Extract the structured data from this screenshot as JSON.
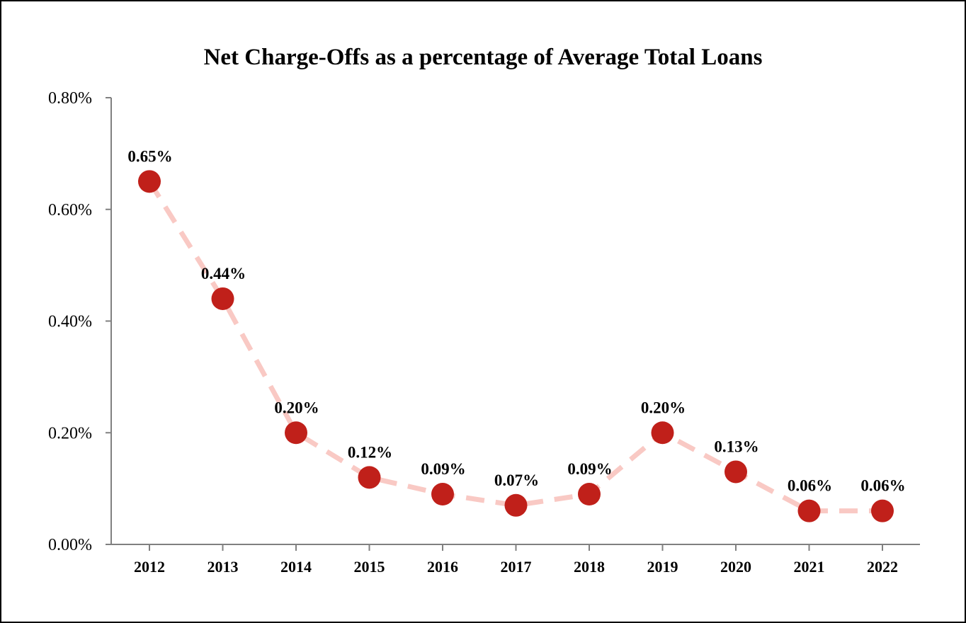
{
  "chart_data": {
    "type": "line",
    "title": "Net Charge-Offs as a percentage of Average Total Loans",
    "xlabel": "",
    "ylabel": "",
    "categories": [
      "2012",
      "2013",
      "2014",
      "2015",
      "2016",
      "2017",
      "2018",
      "2019",
      "2020",
      "2021",
      "2022"
    ],
    "values": [
      0.65,
      0.44,
      0.2,
      0.12,
      0.09,
      0.07,
      0.09,
      0.2,
      0.13,
      0.06,
      0.06
    ],
    "data_labels": [
      "0.65%",
      "0.44%",
      "0.20%",
      "0.12%",
      "0.09%",
      "0.07%",
      "0.09%",
      "0.20%",
      "0.13%",
      "0.06%",
      "0.06%"
    ],
    "ylim": [
      0,
      0.8
    ],
    "yticks": [
      0,
      0.2,
      0.4,
      0.6,
      0.8
    ],
    "ytick_labels": [
      "0.00%",
      "0.20%",
      "0.40%",
      "0.60%",
      "0.80%"
    ],
    "grid": false,
    "legend": "none",
    "colors": {
      "marker": "#c0201a",
      "line": "#f9c9c4",
      "axis": "#808080",
      "text": "#000000",
      "border": "#000000"
    }
  }
}
